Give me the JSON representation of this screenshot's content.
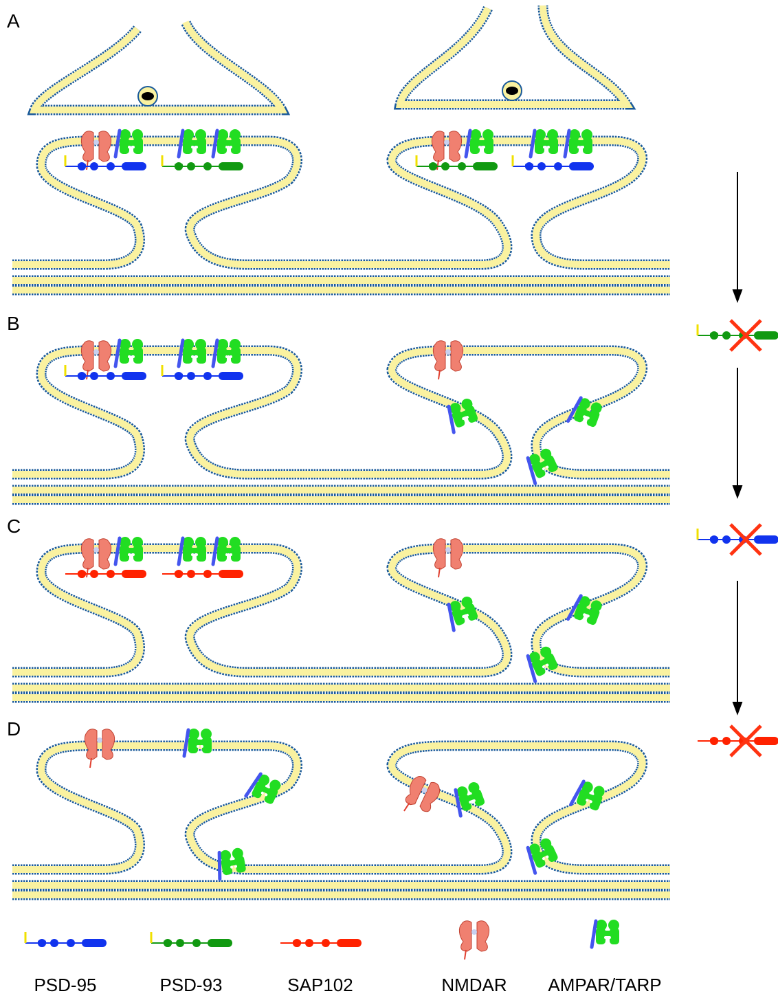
{
  "panels": [
    {
      "label": "A"
    },
    {
      "label": "B"
    },
    {
      "label": "C"
    },
    {
      "label": "D"
    }
  ],
  "legend": {
    "items": [
      {
        "label": "PSD-95"
      },
      {
        "label": "PSD-93"
      },
      {
        "label": "SAP102"
      },
      {
        "label": "NMDAR"
      },
      {
        "label": "AMPAR/TARP"
      }
    ]
  }
}
